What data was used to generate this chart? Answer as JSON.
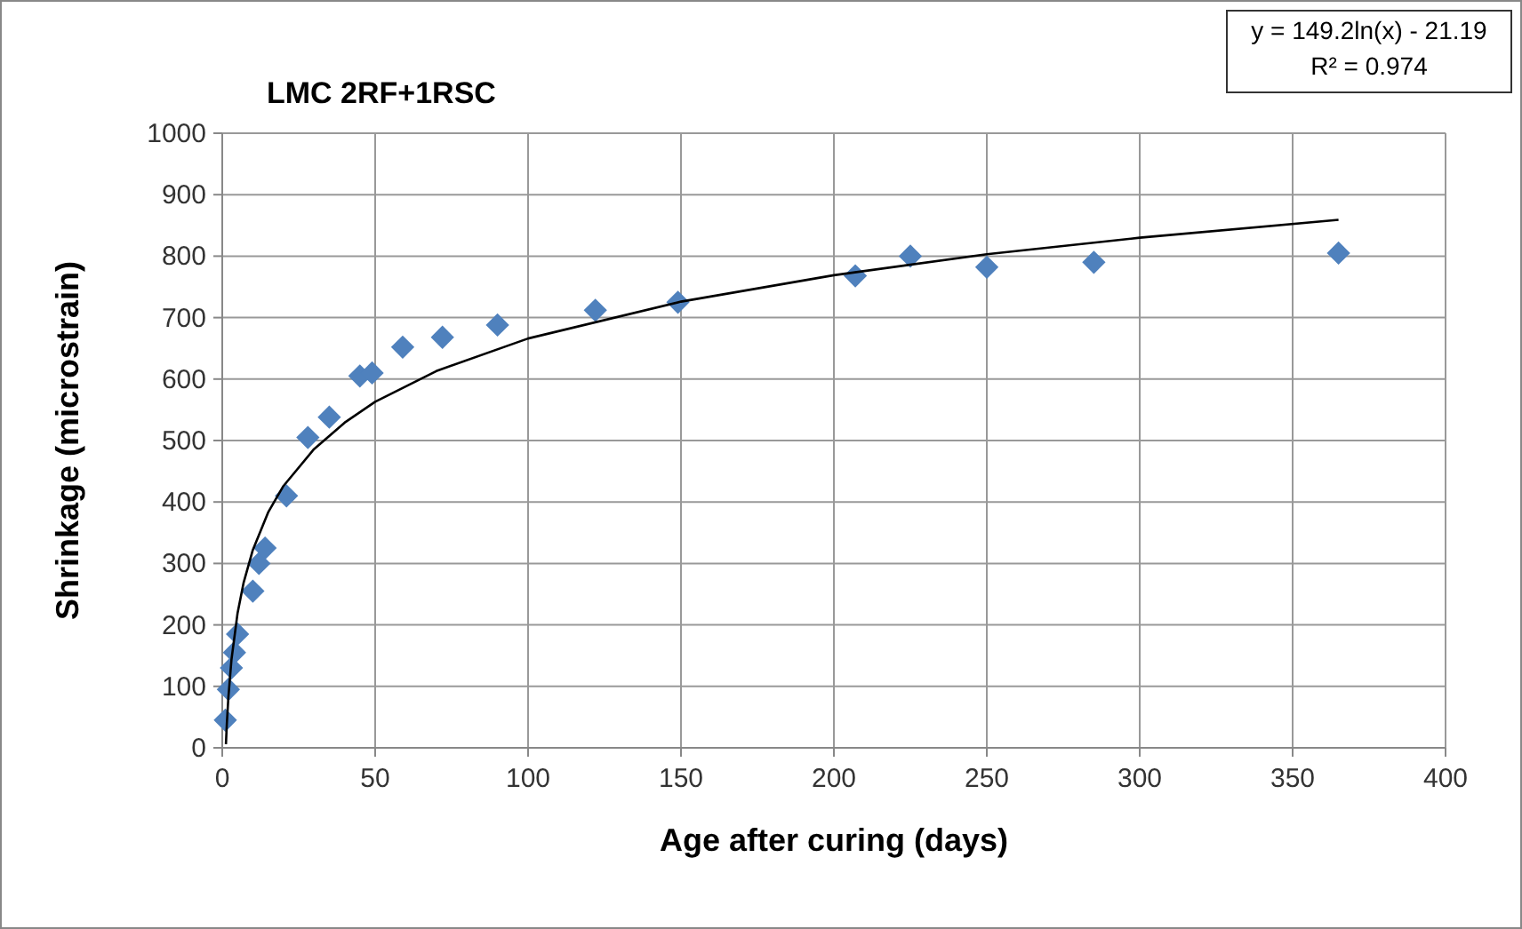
{
  "chart_data": {
    "type": "scatter",
    "title": "LMC 2RF+1RSC",
    "xlabel": "Age after curing (days)",
    "ylabel": "Shrinkage (microstrain)",
    "annotations": [
      "y = 149.2ln(x) - 21.19",
      "R² = 0.974"
    ],
    "xlim": [
      0,
      400
    ],
    "xticks": [
      0,
      50,
      100,
      150,
      200,
      250,
      300,
      350,
      400
    ],
    "ylim": [
      0,
      1000
    ],
    "yticks": [
      0,
      100,
      200,
      300,
      400,
      500,
      600,
      700,
      800,
      900,
      1000
    ],
    "grid": true,
    "series": [
      {
        "color": "#4f81bd",
        "marker": "diamond",
        "x": [
          1,
          2,
          3,
          4,
          5,
          10,
          12,
          14,
          21,
          28,
          35,
          45,
          49,
          59,
          72,
          90,
          122,
          149,
          207,
          225,
          250,
          285,
          365
        ],
        "values": [
          45,
          95,
          130,
          155,
          185,
          255,
          300,
          325,
          410,
          505,
          538,
          605,
          610,
          652,
          668,
          688,
          712,
          725,
          768,
          800,
          782,
          790,
          805
        ]
      },
      {
        "type": "line",
        "color": "#000000",
        "x": [
          1.2,
          1.5,
          2,
          3,
          5,
          7,
          10,
          15,
          20,
          30,
          40,
          50,
          70,
          100,
          150,
          200,
          250,
          300,
          365
        ],
        "values": [
          6,
          39,
          82,
          143,
          219,
          269,
          322,
          383,
          426,
          486,
          529,
          563,
          613,
          666,
          726,
          769,
          803,
          830,
          859
        ]
      }
    ]
  }
}
